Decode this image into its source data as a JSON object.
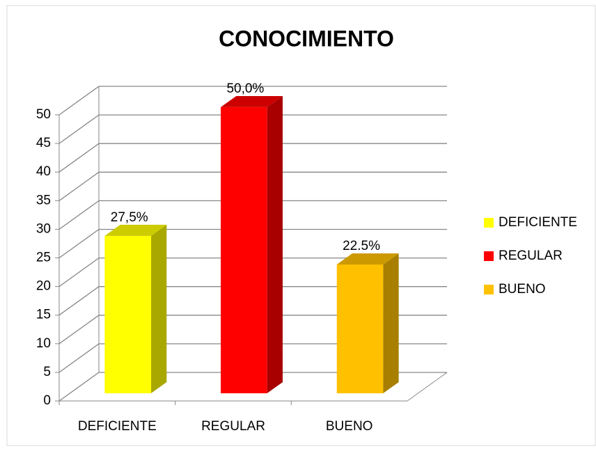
{
  "chart_data": {
    "type": "bar3d",
    "title": "CONOCIMIENTO",
    "categories": [
      "DEFICIENTE",
      "REGULAR",
      "BUENO"
    ],
    "values": [
      27.5,
      50,
      22.5
    ],
    "value_labels": [
      "27,5%",
      "50,0%",
      "22.5%"
    ],
    "colors": [
      "#ffff00",
      "#ff0000",
      "#ffc000"
    ],
    "ylim": [
      0,
      50
    ],
    "yticks": [
      0,
      5,
      10,
      15,
      20,
      25,
      30,
      35,
      40,
      45,
      50
    ],
    "grid": true,
    "legend": "right"
  }
}
